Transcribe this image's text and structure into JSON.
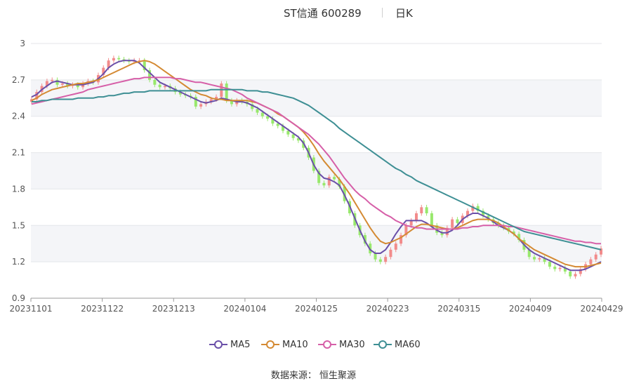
{
  "header": {
    "name": "ST信通 600289",
    "period": "日K"
  },
  "footer": {
    "source": "数据来源： 恒生聚源"
  },
  "colors": {
    "up": "#f28b8b",
    "down": "#98e86c",
    "ma5": "#6a4fa8",
    "ma10": "#d48a33",
    "ma30": "#d65fa8",
    "ma60": "#3e8f94"
  },
  "chart_data": {
    "type": "candlestick",
    "ylim": [
      0.9,
      3.0
    ],
    "yticks": [
      "0.9",
      "1.2",
      "1.5",
      "1.8",
      "2.1",
      "2.4",
      "2.7",
      "3"
    ],
    "xticks": [
      "20231101",
      "20231122",
      "20231213",
      "20240104",
      "20240125",
      "20240223",
      "20240315",
      "20240409",
      "20240429"
    ],
    "legend": [
      "MA5",
      "MA10",
      "MA30",
      "MA60"
    ],
    "grid": true,
    "closes": [
      2.54,
      2.6,
      2.65,
      2.69,
      2.7,
      2.66,
      2.67,
      2.65,
      2.66,
      2.64,
      2.67,
      2.69,
      2.68,
      2.74,
      2.8,
      2.86,
      2.88,
      2.87,
      2.86,
      2.85,
      2.86,
      2.86,
      2.78,
      2.7,
      2.66,
      2.64,
      2.65,
      2.63,
      2.6,
      2.58,
      2.57,
      2.56,
      2.48,
      2.5,
      2.52,
      2.54,
      2.56,
      2.67,
      2.53,
      2.5,
      2.53,
      2.52,
      2.5,
      2.46,
      2.43,
      2.4,
      2.38,
      2.34,
      2.32,
      2.28,
      2.25,
      2.22,
      2.2,
      2.14,
      2.06,
      1.95,
      1.85,
      1.83,
      1.9,
      1.88,
      1.82,
      1.7,
      1.6,
      1.5,
      1.42,
      1.35,
      1.27,
      1.22,
      1.2,
      1.24,
      1.3,
      1.35,
      1.42,
      1.5,
      1.54,
      1.6,
      1.65,
      1.6,
      1.5,
      1.44,
      1.42,
      1.48,
      1.55,
      1.52,
      1.58,
      1.62,
      1.66,
      1.62,
      1.58,
      1.55,
      1.52,
      1.5,
      1.48,
      1.45,
      1.43,
      1.38,
      1.3,
      1.24,
      1.22,
      1.23,
      1.2,
      1.16,
      1.14,
      1.15,
      1.12,
      1.08,
      1.1,
      1.14,
      1.18,
      1.22,
      1.26,
      1.31
    ],
    "series": [
      {
        "name": "MA5",
        "values": [
          2.56,
          2.58,
          2.62,
          2.65,
          2.68,
          2.69,
          2.68,
          2.67,
          2.66,
          2.66,
          2.66,
          2.67,
          2.68,
          2.71,
          2.75,
          2.8,
          2.83,
          2.85,
          2.86,
          2.86,
          2.86,
          2.84,
          2.8,
          2.76,
          2.72,
          2.68,
          2.66,
          2.64,
          2.62,
          2.6,
          2.58,
          2.56,
          2.54,
          2.52,
          2.51,
          2.52,
          2.53,
          2.55,
          2.54,
          2.53,
          2.52,
          2.52,
          2.51,
          2.49,
          2.47,
          2.44,
          2.41,
          2.38,
          2.35,
          2.32,
          2.29,
          2.26,
          2.23,
          2.18,
          2.1,
          2.0,
          1.93,
          1.89,
          1.88,
          1.86,
          1.83,
          1.75,
          1.66,
          1.56,
          1.46,
          1.37,
          1.3,
          1.27,
          1.27,
          1.3,
          1.36,
          1.43,
          1.49,
          1.54,
          1.54,
          1.54,
          1.54,
          1.52,
          1.49,
          1.46,
          1.44,
          1.44,
          1.46,
          1.5,
          1.55,
          1.58,
          1.6,
          1.6,
          1.58,
          1.56,
          1.53,
          1.5,
          1.48,
          1.46,
          1.43,
          1.39,
          1.34,
          1.3,
          1.27,
          1.25,
          1.23,
          1.21,
          1.19,
          1.17,
          1.15,
          1.13,
          1.13,
          1.13,
          1.14,
          1.16,
          1.18,
          1.2
        ]
      },
      {
        "name": "MA10",
        "values": [
          2.53,
          2.55,
          2.58,
          2.6,
          2.62,
          2.63,
          2.64,
          2.65,
          2.66,
          2.67,
          2.67,
          2.68,
          2.69,
          2.7,
          2.72,
          2.74,
          2.76,
          2.78,
          2.8,
          2.82,
          2.84,
          2.85,
          2.86,
          2.85,
          2.83,
          2.8,
          2.77,
          2.74,
          2.71,
          2.68,
          2.65,
          2.62,
          2.6,
          2.58,
          2.57,
          2.55,
          2.54,
          2.54,
          2.53,
          2.53,
          2.53,
          2.53,
          2.53,
          2.52,
          2.51,
          2.49,
          2.47,
          2.45,
          2.42,
          2.4,
          2.37,
          2.34,
          2.31,
          2.27,
          2.22,
          2.16,
          2.09,
          2.03,
          1.98,
          1.93,
          1.88,
          1.82,
          1.76,
          1.69,
          1.62,
          1.55,
          1.48,
          1.42,
          1.37,
          1.35,
          1.36,
          1.38,
          1.4,
          1.43,
          1.46,
          1.49,
          1.51,
          1.51,
          1.5,
          1.49,
          1.48,
          1.47,
          1.47,
          1.48,
          1.5,
          1.52,
          1.54,
          1.55,
          1.55,
          1.55,
          1.54,
          1.52,
          1.49,
          1.46,
          1.43,
          1.39,
          1.36,
          1.33,
          1.3,
          1.28,
          1.26,
          1.24,
          1.22,
          1.2,
          1.18,
          1.17,
          1.16,
          1.16,
          1.16,
          1.17,
          1.18,
          1.19
        ]
      },
      {
        "name": "MA30",
        "values": [
          2.5,
          2.51,
          2.52,
          2.53,
          2.54,
          2.55,
          2.56,
          2.57,
          2.58,
          2.59,
          2.6,
          2.62,
          2.63,
          2.64,
          2.65,
          2.66,
          2.67,
          2.68,
          2.69,
          2.7,
          2.71,
          2.71,
          2.72,
          2.72,
          2.72,
          2.72,
          2.72,
          2.72,
          2.71,
          2.71,
          2.7,
          2.69,
          2.68,
          2.68,
          2.67,
          2.66,
          2.65,
          2.64,
          2.63,
          2.62,
          2.6,
          2.58,
          2.55,
          2.53,
          2.51,
          2.49,
          2.47,
          2.45,
          2.43,
          2.4,
          2.37,
          2.34,
          2.31,
          2.28,
          2.25,
          2.21,
          2.17,
          2.12,
          2.07,
          2.01,
          1.95,
          1.89,
          1.84,
          1.79,
          1.75,
          1.72,
          1.68,
          1.65,
          1.62,
          1.59,
          1.57,
          1.54,
          1.52,
          1.5,
          1.49,
          1.48,
          1.48,
          1.47,
          1.47,
          1.47,
          1.47,
          1.47,
          1.47,
          1.47,
          1.48,
          1.48,
          1.49,
          1.49,
          1.5,
          1.5,
          1.5,
          1.5,
          1.5,
          1.49,
          1.49,
          1.48,
          1.47,
          1.46,
          1.45,
          1.44,
          1.43,
          1.42,
          1.41,
          1.4,
          1.39,
          1.38,
          1.37,
          1.37,
          1.36,
          1.36,
          1.35,
          1.35
        ]
      },
      {
        "name": "MA60",
        "values": [
          2.52,
          2.52,
          2.53,
          2.53,
          2.54,
          2.54,
          2.54,
          2.54,
          2.54,
          2.55,
          2.55,
          2.55,
          2.55,
          2.56,
          2.56,
          2.57,
          2.57,
          2.58,
          2.59,
          2.59,
          2.6,
          2.6,
          2.6,
          2.61,
          2.61,
          2.61,
          2.61,
          2.61,
          2.61,
          2.61,
          2.61,
          2.61,
          2.61,
          2.61,
          2.61,
          2.62,
          2.62,
          2.62,
          2.62,
          2.62,
          2.62,
          2.62,
          2.61,
          2.61,
          2.61,
          2.6,
          2.6,
          2.59,
          2.58,
          2.57,
          2.56,
          2.55,
          2.53,
          2.51,
          2.49,
          2.46,
          2.43,
          2.4,
          2.37,
          2.34,
          2.3,
          2.27,
          2.24,
          2.21,
          2.18,
          2.15,
          2.12,
          2.09,
          2.06,
          2.03,
          2.0,
          1.97,
          1.95,
          1.92,
          1.9,
          1.87,
          1.85,
          1.83,
          1.81,
          1.79,
          1.77,
          1.75,
          1.73,
          1.71,
          1.69,
          1.67,
          1.65,
          1.63,
          1.61,
          1.59,
          1.57,
          1.55,
          1.53,
          1.51,
          1.49,
          1.47,
          1.45,
          1.44,
          1.43,
          1.42,
          1.41,
          1.4,
          1.39,
          1.38,
          1.37,
          1.36,
          1.35,
          1.34,
          1.33,
          1.32,
          1.31,
          1.3
        ]
      }
    ]
  }
}
